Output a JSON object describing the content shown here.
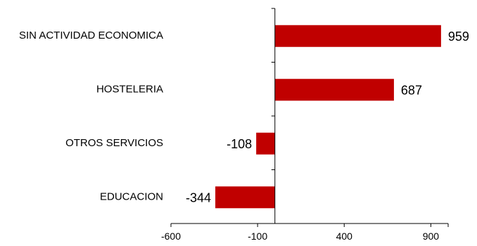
{
  "chart_data": {
    "type": "bar",
    "orientation": "horizontal",
    "categories": [
      "SIN ACTIVIDAD ECONOMICA",
      "HOSTELERIA",
      "OTROS SERVICIOS",
      "EDUCACION"
    ],
    "values": [
      959,
      687,
      -108,
      -344
    ],
    "data_labels": [
      "959",
      "687",
      "-108",
      "-344"
    ],
    "xlim": [
      -600,
      1000
    ],
    "xticks": [
      -600,
      -100,
      400,
      900
    ],
    "xtick_labels": [
      "-600",
      "-100",
      "400",
      "900"
    ],
    "bar_color": "#c00000",
    "grid": false,
    "legend": "none"
  }
}
